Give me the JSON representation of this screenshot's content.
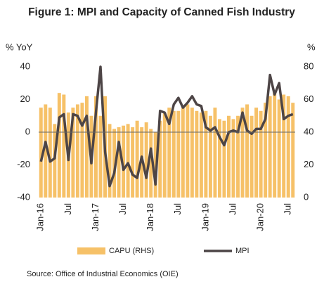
{
  "chart_data": {
    "type": "bar_line",
    "title": "Figure 1: MPI and Capacity of Canned Fish Industry",
    "y_label": "% YoY",
    "y2_label": "%",
    "source": "Source: Office of Industrial Economics (OIE)",
    "categories": [
      "Jan-16",
      null,
      null,
      null,
      null,
      null,
      "Jul",
      null,
      null,
      null,
      null,
      null,
      "Jan-17",
      null,
      null,
      null,
      null,
      null,
      "Jul",
      null,
      null,
      null,
      null,
      null,
      "Jan-18",
      null,
      null,
      null,
      null,
      null,
      "Jul",
      null,
      null,
      null,
      null,
      null,
      "Jan-19",
      null,
      null,
      null,
      null,
      null,
      "Jul",
      null,
      null,
      null,
      null,
      null,
      "Jan-20",
      null,
      null,
      null,
      null,
      null,
      "Jul",
      null
    ],
    "ylim": [
      -40,
      40
    ],
    "yticks": [
      -40,
      -20,
      0,
      20,
      40
    ],
    "y2lim": [
      0,
      80
    ],
    "y2ticks": [
      0,
      20,
      40,
      60,
      80
    ],
    "series": [
      {
        "name": "CAPU (RHS)",
        "type": "bar",
        "axis": "y2",
        "color": "#f6c168",
        "values": [
          55,
          57,
          55,
          45,
          64,
          63,
          52,
          55,
          57,
          58,
          62,
          50,
          62,
          50,
          62,
          45,
          42,
          43,
          44,
          45,
          43,
          47,
          43,
          46,
          42,
          40,
          47,
          52,
          55,
          53,
          53,
          55,
          57,
          55,
          53,
          52,
          53,
          50,
          55,
          48,
          47,
          50,
          48,
          50,
          55,
          57,
          50,
          55,
          53,
          58,
          62,
          65,
          60,
          63,
          62,
          58
        ]
      },
      {
        "name": "MPI",
        "type": "line",
        "axis": "y",
        "color": "#4d4546",
        "values": [
          -18,
          -6,
          -18,
          -16,
          9,
          11,
          -17,
          11,
          10,
          4,
          10,
          -19,
          12,
          40,
          -12,
          -33,
          -25,
          -6,
          -23,
          -19,
          -26,
          -28,
          -15,
          -28,
          -10,
          -32,
          13,
          12,
          5,
          17,
          21,
          15,
          18,
          22,
          17,
          16,
          3,
          1,
          3,
          -3,
          -8,
          0,
          1,
          0,
          12,
          1,
          -1,
          2,
          2,
          8,
          35,
          23,
          30,
          8,
          10,
          11
        ]
      }
    ]
  }
}
